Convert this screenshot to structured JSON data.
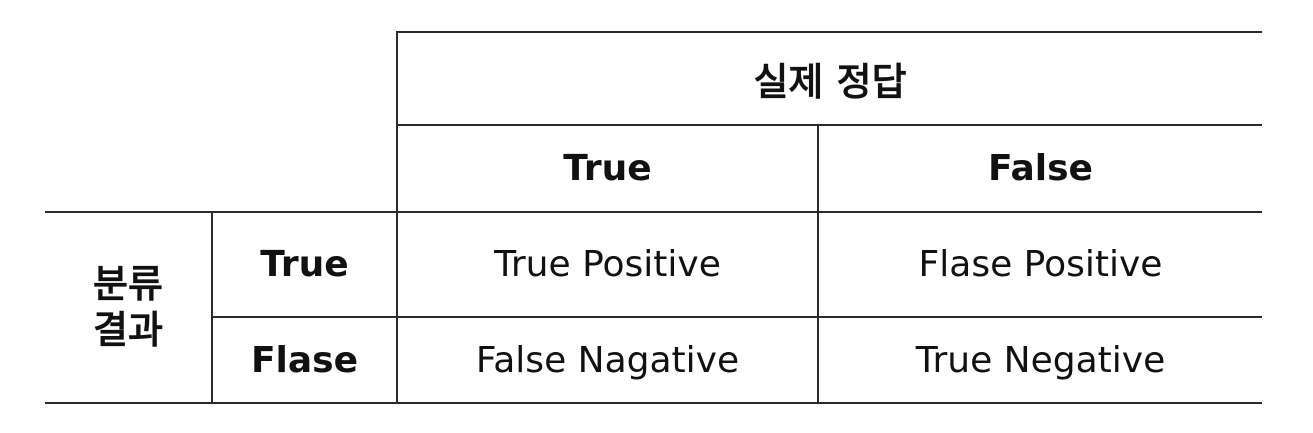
{
  "table": {
    "column_group_header": "실제 정답",
    "column_headers": [
      "True",
      "False"
    ],
    "row_group_header": [
      "분류",
      "결과"
    ],
    "row_headers": [
      "True",
      "Flase"
    ],
    "cells": [
      [
        "True Positive",
        "Flase Positive"
      ],
      [
        "False Nagative",
        "True Negative"
      ]
    ]
  }
}
